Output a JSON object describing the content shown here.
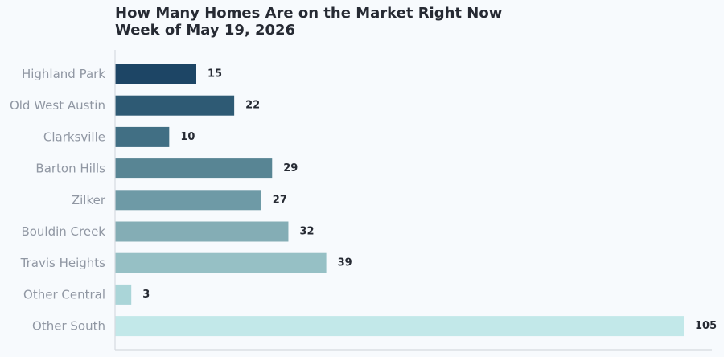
{
  "chart_data": {
    "type": "bar",
    "orientation": "horizontal",
    "title": "How Many Homes Are on the Market Right Now",
    "subtitle": "Week of May 19, 2026",
    "categories": [
      "Highland Park",
      "Old West Austin",
      "Clarksville",
      "Barton Hills",
      "Zilker",
      "Bouldin Creek",
      "Travis Heights",
      "Other Central",
      "Other South"
    ],
    "values": [
      15,
      22,
      10,
      29,
      27,
      32,
      39,
      3,
      105
    ],
    "colors": [
      "#1d4565",
      "#2e5a74",
      "#416f84",
      "#588594",
      "#6e9aa6",
      "#84adb5",
      "#96c0c5",
      "#aad5d8",
      "#c2e8e9"
    ],
    "xlim": [
      0,
      110
    ],
    "grid": false,
    "data_labels": true,
    "legend": "none"
  }
}
